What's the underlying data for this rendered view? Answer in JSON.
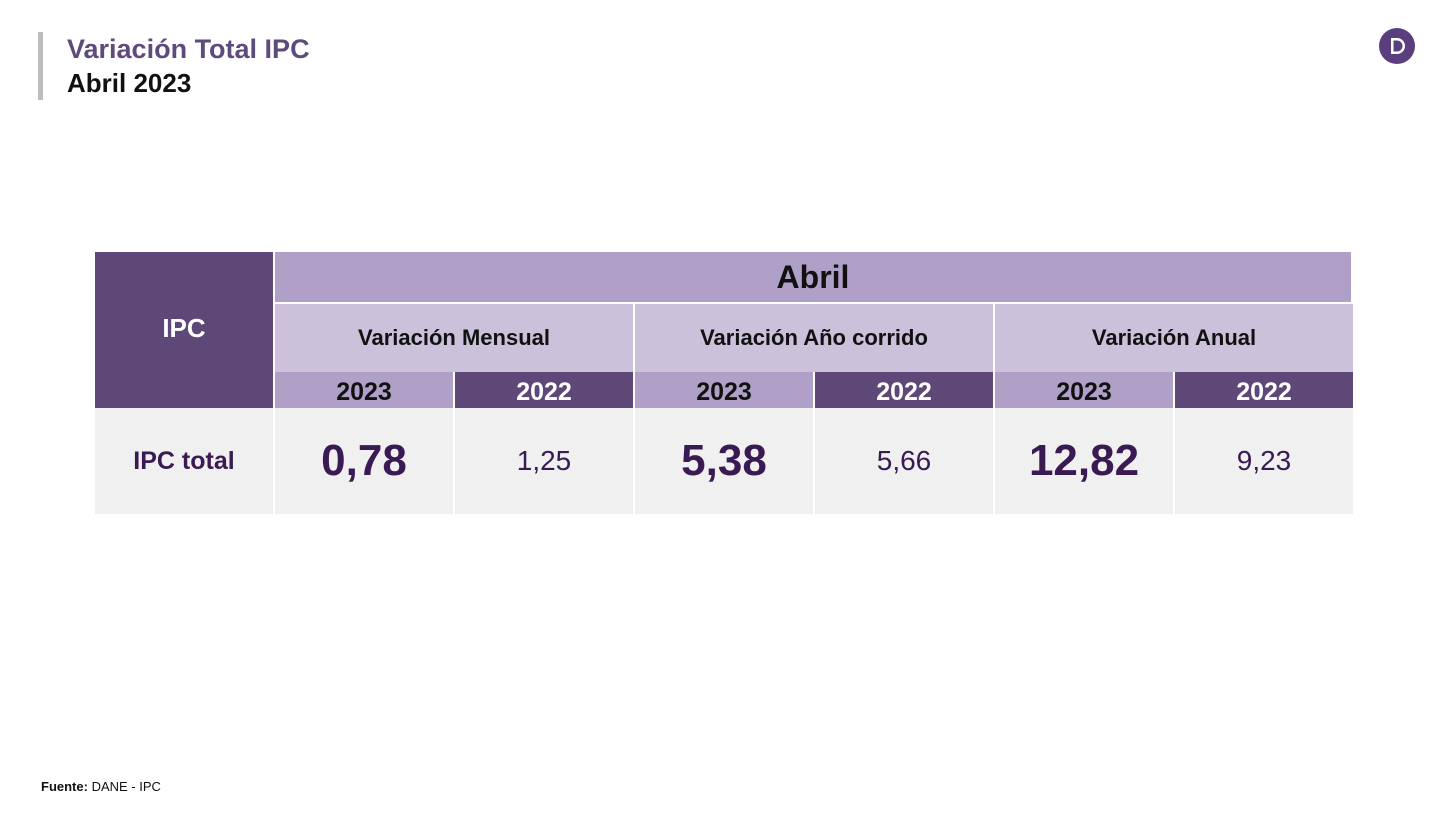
{
  "header": {
    "title": "Variación Total IPC",
    "subtitle": "Abril 2023"
  },
  "logo": {
    "icon": "dane-logo-icon",
    "color": "#5a3e7e"
  },
  "table": {
    "row_header": "IPC",
    "month": "Abril",
    "groups": [
      "Variación Mensual",
      "Variación Año corrido",
      "Variación Anual"
    ],
    "years": [
      "2023",
      "2022",
      "2023",
      "2022",
      "2023",
      "2022"
    ],
    "row": {
      "label": "IPC total",
      "values": [
        "0,78",
        "1,25",
        "5,38",
        "5,66",
        "12,82",
        "9,23"
      ]
    },
    "colors": {
      "dark_purple": "#5d4878",
      "mid_purple": "#b0a0c8",
      "light_purple": "#cbc1db",
      "value_text": "#3a1a52",
      "row_bg": "#f0f0f0"
    }
  },
  "footer": {
    "source_label": "Fuente:",
    "source_value": " DANE - IPC"
  }
}
